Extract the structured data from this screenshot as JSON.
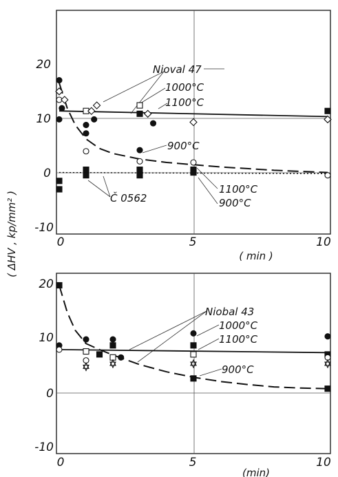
{
  "ylabel": "( ΔHV , kp/mm² )",
  "chart_data": [
    {
      "type": "scatter",
      "xlabel": "( min )",
      "xlim": [
        0,
        10
      ],
      "ylim": [
        -10,
        30
      ],
      "x_ticks": [
        "0",
        "5",
        "10"
      ],
      "y_ticks": [
        "20",
        "10",
        "0",
        "-10"
      ],
      "labels": {
        "group_a": "Nioval 47",
        "group_b": "Č 0562",
        "t1000": "1000°C",
        "t1100": "1100°C",
        "t900": "900°C",
        "t1100b": "1100°C",
        "t900b": "900°C"
      },
      "lines": [
        {
          "style": "solid",
          "x": [
            0,
            10
          ],
          "y": [
            12,
            11
          ]
        },
        {
          "style": "dashed",
          "x": [
            0,
            0.3,
            0.6,
            1,
            1.5,
            2,
            3,
            4,
            5,
            6,
            7,
            8,
            9,
            10
          ],
          "y": [
            17,
            12.5,
            9.5,
            7,
            5.3,
            4.4,
            3.4,
            2.8,
            2.4,
            2,
            1.7,
            1.4,
            1.2,
            1
          ]
        },
        {
          "style": "dotted",
          "x": [
            0,
            10
          ],
          "y": [
            1,
            0.8
          ]
        }
      ],
      "points": [
        {
          "x": 0,
          "y": 17.5,
          "m": "fc"
        },
        {
          "x": 0,
          "y": 15.5,
          "m": "d"
        },
        {
          "x": 0,
          "y": 14,
          "m": "oc"
        },
        {
          "x": 0.2,
          "y": 14,
          "m": "d"
        },
        {
          "x": 0,
          "y": 10.5,
          "m": "fc"
        },
        {
          "x": 0.1,
          "y": 12.5,
          "m": "fc"
        },
        {
          "x": 0,
          "y": -0.5,
          "m": "fs"
        },
        {
          "x": 0,
          "y": -2,
          "m": "fs"
        },
        {
          "x": 1,
          "y": 12,
          "m": "os"
        },
        {
          "x": 1.2,
          "y": 12,
          "m": "d"
        },
        {
          "x": 1.4,
          "y": 13,
          "m": "d"
        },
        {
          "x": 1,
          "y": 9.5,
          "m": "fc"
        },
        {
          "x": 1.3,
          "y": 10.5,
          "m": "fc"
        },
        {
          "x": 1,
          "y": 8,
          "m": "fc"
        },
        {
          "x": 1,
          "y": 4.8,
          "m": "oc"
        },
        {
          "x": 1,
          "y": 1.5,
          "m": "fs"
        },
        {
          "x": 1,
          "y": 0.5,
          "m": "fs"
        },
        {
          "x": 3,
          "y": 13,
          "m": "os"
        },
        {
          "x": 3,
          "y": 11.5,
          "m": "fs"
        },
        {
          "x": 3.3,
          "y": 11.5,
          "m": "d"
        },
        {
          "x": 3.5,
          "y": 9.8,
          "m": "fc"
        },
        {
          "x": 3,
          "y": 5,
          "m": "fc"
        },
        {
          "x": 3,
          "y": 3,
          "m": "oc"
        },
        {
          "x": 3,
          "y": 1.5,
          "m": "fs"
        },
        {
          "x": 3,
          "y": 0.5,
          "m": "fs"
        },
        {
          "x": 5,
          "y": 10,
          "m": "d"
        },
        {
          "x": 5,
          "y": 2.8,
          "m": "oc"
        },
        {
          "x": 5,
          "y": 1.5,
          "m": "fs"
        },
        {
          "x": 5,
          "y": 1,
          "m": "fs"
        },
        {
          "x": 10,
          "y": 12,
          "m": "fs"
        },
        {
          "x": 10,
          "y": 10.5,
          "m": "d"
        },
        {
          "x": 10,
          "y": 0.5,
          "m": "oc"
        }
      ]
    },
    {
      "type": "scatter",
      "xlabel": "(min)",
      "xlim": [
        0,
        10
      ],
      "ylim": [
        -10,
        20
      ],
      "x_ticks": [
        "0",
        "5",
        "10"
      ],
      "y_ticks": [
        "20",
        "10",
        "0",
        "-10"
      ],
      "labels": {
        "group_a": "Niobal 43",
        "t1000": "1000°C",
        "t1100": "1100°C",
        "t900": "900°C"
      },
      "lines": [
        {
          "style": "solid",
          "x": [
            0,
            10
          ],
          "y": [
            7.3,
            6.8
          ]
        },
        {
          "style": "dashed",
          "x": [
            0,
            0.3,
            0.6,
            1,
            1.5,
            2,
            3,
            4,
            5,
            6,
            7,
            8,
            9,
            10
          ],
          "y": [
            18,
            13.5,
            10.5,
            8.3,
            7.3,
            6.4,
            4.8,
            3.6,
            2.7,
            2,
            1.5,
            1.1,
            0.9,
            0.8
          ]
        }
      ],
      "points": [
        {
          "x": 0,
          "y": 18,
          "m": "fs"
        },
        {
          "x": 0,
          "y": 8,
          "m": "fc"
        },
        {
          "x": 0,
          "y": 7.3,
          "m": "oc"
        },
        {
          "x": 1,
          "y": 9,
          "m": "fc"
        },
        {
          "x": 1,
          "y": 7,
          "m": "os"
        },
        {
          "x": 1,
          "y": 5.5,
          "m": "oc"
        },
        {
          "x": 1,
          "y": 4.5,
          "m": "st"
        },
        {
          "x": 1.5,
          "y": 6.5,
          "m": "fs"
        },
        {
          "x": 2,
          "y": 9,
          "m": "fc"
        },
        {
          "x": 2,
          "y": 8,
          "m": "fs"
        },
        {
          "x": 2,
          "y": 6,
          "m": "os"
        },
        {
          "x": 2,
          "y": 5,
          "m": "st"
        },
        {
          "x": 2.3,
          "y": 6,
          "m": "fc"
        },
        {
          "x": 5,
          "y": 10,
          "m": "fc"
        },
        {
          "x": 5,
          "y": 8,
          "m": "fs"
        },
        {
          "x": 5,
          "y": 6.5,
          "m": "os"
        },
        {
          "x": 5,
          "y": 5,
          "m": "st"
        },
        {
          "x": 5,
          "y": 2.5,
          "m": "fs"
        },
        {
          "x": 10,
          "y": 9.5,
          "m": "fc"
        },
        {
          "x": 10,
          "y": 6.5,
          "m": "fs"
        },
        {
          "x": 10,
          "y": 6,
          "m": "oc"
        },
        {
          "x": 10,
          "y": 5,
          "m": "st"
        },
        {
          "x": 10,
          "y": 0.8,
          "m": "fs"
        }
      ]
    }
  ]
}
